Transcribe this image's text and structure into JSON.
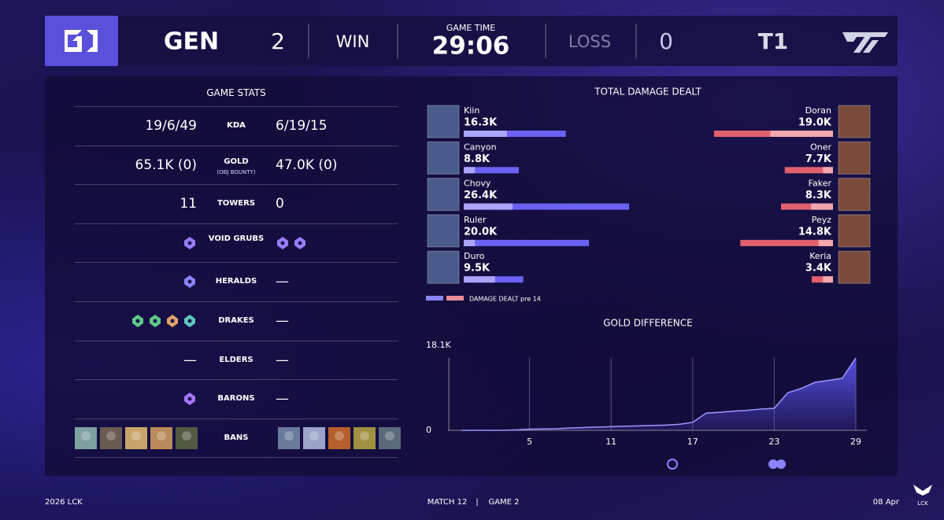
{
  "header": {
    "team1": "GEN",
    "score1": "2",
    "result1": "WIN",
    "game_time_label": "GAME TIME",
    "game_time": "29:06",
    "result2": "LOSS",
    "score2": "0",
    "team2": "T1"
  },
  "game_stats": {
    "title": "GAME STATS",
    "rows": [
      {
        "label": "KDA",
        "left": "19/6/49",
        "right": "6/19/15"
      },
      {
        "label": "GOLD",
        "sublabel": "(OBJ BOUNTY)",
        "left": "65.1K (0)",
        "right": "47.0K (0)"
      },
      {
        "label": "TOWERS",
        "left": "11",
        "right": "0"
      },
      {
        "label": "VOID GRUBS"
      },
      {
        "label": "HERALDS",
        "right": "—"
      },
      {
        "label": "DRAKES",
        "right": "—"
      },
      {
        "label": "ELDERS",
        "left": "—",
        "right": "—"
      },
      {
        "label": "BARONS",
        "right": "—"
      },
      {
        "label": "BANS"
      }
    ]
  },
  "chart_data": [
    {
      "type": "bar",
      "title": "TOTAL DAMAGE DEALT",
      "legend": "DAMAGE DEALT pre 14",
      "series": [
        {
          "color": "#6a62f2",
          "pre_color": "#aaa5f8",
          "categories": [
            "Kiin",
            "Canyon",
            "Chovy",
            "Ruler",
            "Duro"
          ],
          "values": [
            16300,
            8800,
            26400,
            20000,
            9500
          ],
          "value_labels": [
            "16.3K",
            "8.8K",
            "26.4K",
            "20.0K",
            "9.5K"
          ],
          "pre14_values": [
            6900,
            1800,
            7800,
            1800,
            5000
          ]
        },
        {
          "color": "#e0616e",
          "pre_color": "#f2a6ad",
          "categories": [
            "Doran",
            "Oner",
            "Faker",
            "Peyz",
            "Keria"
          ],
          "values": [
            19000,
            7700,
            8300,
            14800,
            3400
          ],
          "value_labels": [
            "19.0K",
            "7.7K",
            "8.3K",
            "14.8K",
            "3.4K"
          ],
          "pre14_values": [
            10000,
            1600,
            3500,
            2300,
            1600
          ]
        }
      ]
    },
    {
      "type": "area",
      "title": "GOLD DIFFERENCE",
      "color": "#5b52e8",
      "grid": true,
      "x": [
        0,
        1,
        2,
        3,
        4,
        5,
        6,
        7,
        8,
        9,
        10,
        11,
        12,
        13,
        14,
        15,
        16,
        17,
        18,
        19,
        20,
        21,
        22,
        23,
        24,
        25,
        26,
        27,
        28,
        29
      ],
      "values": [
        0,
        0,
        0,
        0,
        100,
        300,
        350,
        400,
        600,
        700,
        800,
        900,
        1000,
        1100,
        1200,
        1300,
        1500,
        2000,
        4300,
        4500,
        4800,
        5000,
        5300,
        5500,
        9400,
        10500,
        12000,
        12500,
        13000,
        18100
      ],
      "xlim": [
        -1,
        29
      ],
      "ylim": [
        0,
        18100
      ],
      "xticks": [
        5,
        11,
        17,
        23,
        29
      ],
      "yticks": [
        0,
        {
          "value": 18100,
          "label": "18.1K"
        }
      ]
    }
  ],
  "footer": {
    "left": "2026 LCK",
    "match": "MATCH 12",
    "separator": "|",
    "game": "GAME 2",
    "date": "08 Apr",
    "logo": "LCK"
  }
}
